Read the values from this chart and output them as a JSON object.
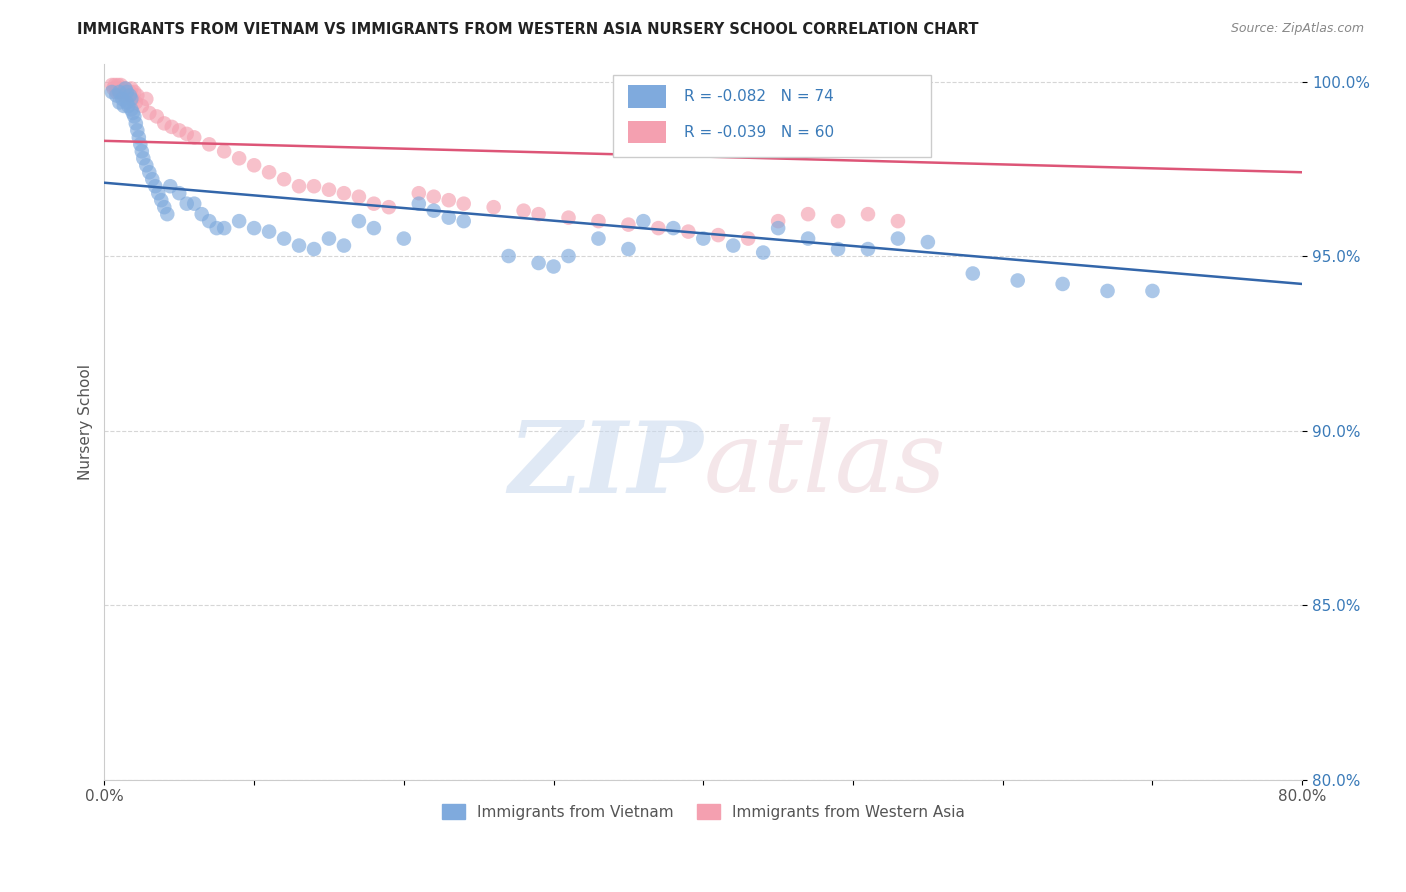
{
  "title": "IMMIGRANTS FROM VIETNAM VS IMMIGRANTS FROM WESTERN ASIA NURSERY SCHOOL CORRELATION CHART",
  "source": "Source: ZipAtlas.com",
  "ylabel": "Nursery School",
  "legend_blue_label": "Immigrants from Vietnam",
  "legend_pink_label": "Immigrants from Western Asia",
  "r_blue": -0.082,
  "n_blue": 74,
  "r_pink": -0.039,
  "n_pink": 60,
  "xlim": [
    0.0,
    0.8
  ],
  "ylim": [
    0.8,
    1.005
  ],
  "yticks": [
    0.8,
    0.85,
    0.9,
    0.95,
    1.0
  ],
  "ytick_labels": [
    "80.0%",
    "85.0%",
    "90.0%",
    "95.0%",
    "100.0%"
  ],
  "blue_color": "#7faadd",
  "pink_color": "#f4a0b0",
  "trendline_blue": "#3366aa",
  "trendline_pink": "#dd5577",
  "background_color": "#ffffff",
  "blue_x": [
    0.005,
    0.008,
    0.01,
    0.01,
    0.012,
    0.013,
    0.014,
    0.015,
    0.015,
    0.016,
    0.017,
    0.018,
    0.018,
    0.019,
    0.02,
    0.021,
    0.022,
    0.023,
    0.024,
    0.025,
    0.026,
    0.028,
    0.03,
    0.032,
    0.034,
    0.036,
    0.038,
    0.04,
    0.042,
    0.044,
    0.05,
    0.055,
    0.06,
    0.065,
    0.07,
    0.075,
    0.08,
    0.09,
    0.1,
    0.11,
    0.12,
    0.13,
    0.14,
    0.15,
    0.16,
    0.17,
    0.18,
    0.2,
    0.21,
    0.22,
    0.23,
    0.24,
    0.27,
    0.29,
    0.3,
    0.31,
    0.33,
    0.35,
    0.36,
    0.38,
    0.4,
    0.42,
    0.44,
    0.45,
    0.47,
    0.49,
    0.51,
    0.53,
    0.55,
    0.58,
    0.61,
    0.64,
    0.67,
    0.7
  ],
  "blue_y": [
    0.997,
    0.996,
    0.994,
    0.997,
    0.995,
    0.993,
    0.998,
    0.994,
    0.997,
    0.993,
    0.996,
    0.992,
    0.995,
    0.991,
    0.99,
    0.988,
    0.986,
    0.984,
    0.982,
    0.98,
    0.978,
    0.976,
    0.974,
    0.972,
    0.97,
    0.968,
    0.966,
    0.964,
    0.962,
    0.97,
    0.968,
    0.965,
    0.965,
    0.962,
    0.96,
    0.958,
    0.958,
    0.96,
    0.958,
    0.957,
    0.955,
    0.953,
    0.952,
    0.955,
    0.953,
    0.96,
    0.958,
    0.955,
    0.965,
    0.963,
    0.961,
    0.96,
    0.95,
    0.948,
    0.947,
    0.95,
    0.955,
    0.952,
    0.96,
    0.958,
    0.955,
    0.953,
    0.951,
    0.958,
    0.955,
    0.952,
    0.952,
    0.955,
    0.954,
    0.945,
    0.943,
    0.942,
    0.94,
    0.94
  ],
  "pink_x": [
    0.005,
    0.006,
    0.007,
    0.008,
    0.009,
    0.01,
    0.01,
    0.011,
    0.012,
    0.013,
    0.014,
    0.015,
    0.016,
    0.017,
    0.018,
    0.019,
    0.02,
    0.021,
    0.022,
    0.025,
    0.028,
    0.03,
    0.035,
    0.04,
    0.045,
    0.05,
    0.055,
    0.06,
    0.07,
    0.08,
    0.09,
    0.1,
    0.11,
    0.12,
    0.13,
    0.14,
    0.15,
    0.16,
    0.17,
    0.18,
    0.19,
    0.21,
    0.22,
    0.23,
    0.24,
    0.26,
    0.28,
    0.29,
    0.31,
    0.33,
    0.35,
    0.37,
    0.39,
    0.41,
    0.43,
    0.45,
    0.47,
    0.49,
    0.51,
    0.53
  ],
  "pink_y": [
    0.999,
    0.998,
    0.999,
    0.997,
    0.999,
    0.998,
    0.997,
    0.999,
    0.997,
    0.996,
    0.998,
    0.997,
    0.996,
    0.997,
    0.998,
    0.995,
    0.997,
    0.994,
    0.996,
    0.993,
    0.995,
    0.991,
    0.99,
    0.988,
    0.987,
    0.986,
    0.985,
    0.984,
    0.982,
    0.98,
    0.978,
    0.976,
    0.974,
    0.972,
    0.97,
    0.97,
    0.969,
    0.968,
    0.967,
    0.965,
    0.964,
    0.968,
    0.967,
    0.966,
    0.965,
    0.964,
    0.963,
    0.962,
    0.961,
    0.96,
    0.959,
    0.958,
    0.957,
    0.956,
    0.955,
    0.96,
    0.962,
    0.96,
    0.962,
    0.96
  ],
  "blue_trend_x0": 0.0,
  "blue_trend_y0": 0.971,
  "blue_trend_x1": 0.8,
  "blue_trend_y1": 0.942,
  "pink_trend_x0": 0.0,
  "pink_trend_y0": 0.983,
  "pink_trend_x1": 0.8,
  "pink_trend_y1": 0.974
}
